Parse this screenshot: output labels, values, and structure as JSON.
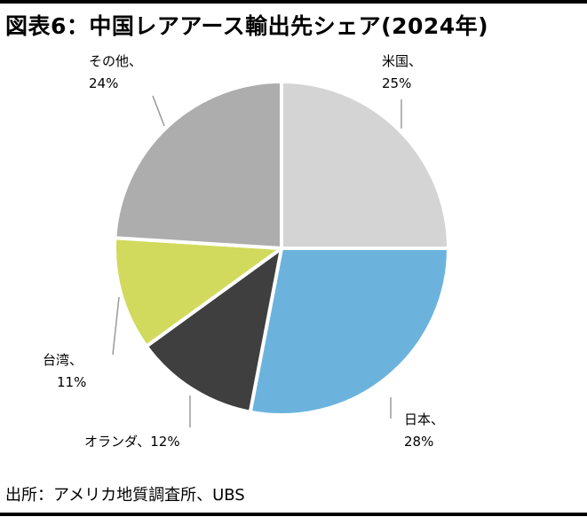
{
  "title": "図表6：中国レアアース輸出先シェア(2024年)",
  "source": "出所：アメリカ地質調査所、UBS",
  "chart_data": {
    "type": "pie",
    "start_angle_deg": 0,
    "direction": "clockwise",
    "slices": [
      {
        "label": "米国、",
        "value": 25,
        "pct_text": "25%",
        "color": "#d4d4d4"
      },
      {
        "label": "日本、",
        "value": 28,
        "pct_text": "28%",
        "color": "#6bb3dc"
      },
      {
        "label": "オランダ、12%",
        "value": 12,
        "pct_text": "",
        "color": "#3f3f3f"
      },
      {
        "label": "台湾、",
        "value": 11,
        "pct_text": "11%",
        "color": "#d1da5d"
      },
      {
        "label": "その他、",
        "value": 24,
        "pct_text": "24%",
        "color": "#adadad"
      }
    ]
  }
}
